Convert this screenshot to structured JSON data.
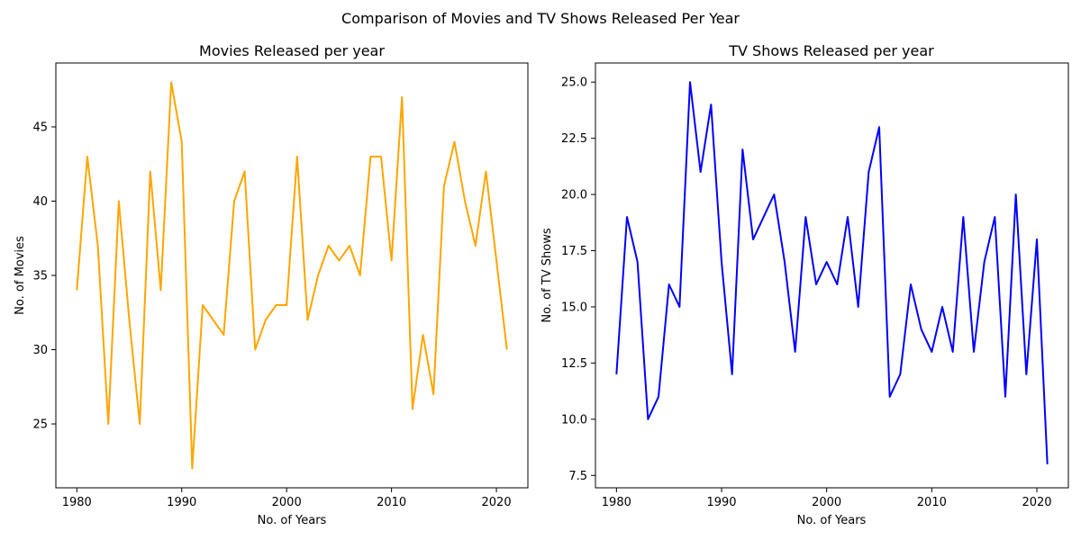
{
  "suptitle": "Comparison of Movies and TV Shows Released Per Year",
  "chart_data": [
    {
      "type": "line",
      "title": "Movies Released per year",
      "xlabel": "No. of Years",
      "ylabel": "No. of Movies",
      "xlim": [
        1978,
        2023
      ],
      "ylim": [
        20.7,
        49.3
      ],
      "xticks": [
        1980,
        1990,
        2000,
        2010,
        2020
      ],
      "yticks": [
        25,
        30,
        35,
        40,
        45
      ],
      "ytick_labels": [
        "25",
        "30",
        "35",
        "40",
        "45"
      ],
      "color": "#ffa500",
      "x": [
        1980,
        1981,
        1982,
        1983,
        1984,
        1985,
        1986,
        1987,
        1988,
        1989,
        1990,
        1991,
        1992,
        1993,
        1994,
        1995,
        1996,
        1997,
        1998,
        1999,
        2000,
        2001,
        2002,
        2003,
        2004,
        2005,
        2006,
        2007,
        2008,
        2009,
        2010,
        2011,
        2012,
        2013,
        2014,
        2015,
        2016,
        2017,
        2018,
        2019,
        2020,
        2021
      ],
      "y": [
        34,
        43,
        37,
        25,
        40,
        32,
        25,
        42,
        34,
        48,
        44,
        22,
        33,
        32,
        31,
        40,
        42,
        30,
        32,
        33,
        33,
        43,
        32,
        35,
        37,
        36,
        37,
        35,
        43,
        43,
        36,
        47,
        26,
        31,
        27,
        41,
        44,
        40,
        37,
        42,
        36,
        30
      ]
    },
    {
      "type": "line",
      "title": "TV Shows Released per year",
      "xlabel": "No. of Years",
      "ylabel": "No. of TV Shows",
      "xlim": [
        1978,
        2023
      ],
      "ylim": [
        6.95,
        25.85
      ],
      "xticks": [
        1980,
        1990,
        2000,
        2010,
        2020
      ],
      "yticks": [
        7.5,
        10.0,
        12.5,
        15.0,
        17.5,
        20.0,
        22.5,
        25.0
      ],
      "ytick_labels": [
        "7.5",
        "10.0",
        "12.5",
        "15.0",
        "17.5",
        "20.0",
        "22.5",
        "25.0"
      ],
      "color": "#0000ff",
      "x": [
        1980,
        1981,
        1982,
        1983,
        1984,
        1985,
        1986,
        1987,
        1988,
        1989,
        1990,
        1991,
        1992,
        1993,
        1994,
        1995,
        1996,
        1997,
        1998,
        1999,
        2000,
        2001,
        2002,
        2003,
        2004,
        2005,
        2006,
        2007,
        2008,
        2009,
        2010,
        2011,
        2012,
        2013,
        2014,
        2015,
        2016,
        2017,
        2018,
        2019,
        2020,
        2021
      ],
      "y": [
        12,
        19,
        17,
        10,
        11,
        16,
        15,
        25,
        21,
        24,
        17,
        12,
        22,
        18,
        19,
        20,
        17,
        13,
        19,
        16,
        17,
        16,
        19,
        15,
        21,
        23,
        11,
        12,
        16,
        14,
        13,
        15,
        13,
        19,
        13,
        17,
        19,
        11,
        20,
        12,
        18,
        8
      ]
    }
  ]
}
